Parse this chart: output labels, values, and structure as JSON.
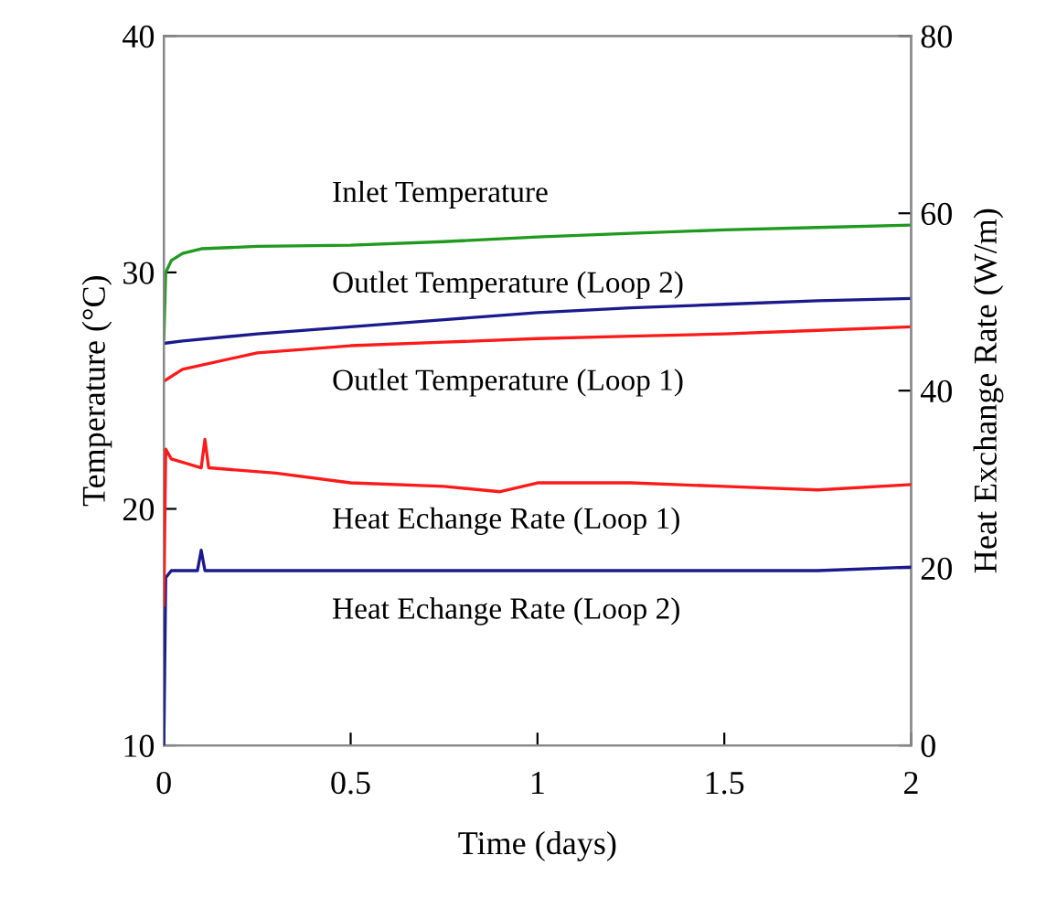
{
  "chart_data": {
    "type": "line",
    "xlabel": "Time (days)",
    "ylabel": "Temperature (°C)",
    "y2label": "Heat Exchange Rate (W/m)",
    "xlim": [
      0,
      2
    ],
    "xticks": [
      0,
      0.5,
      1,
      1.5,
      2
    ],
    "ylim": [
      10,
      40
    ],
    "yticks": [
      10,
      20,
      30,
      40
    ],
    "y2lim": [
      0,
      80
    ],
    "y2ticks": [
      0,
      20,
      40,
      60,
      80
    ],
    "grid": false,
    "legend": false,
    "series": [
      {
        "name": "Inlet Temperature",
        "color": "#1f9a1f",
        "x": [
          0,
          0.005,
          0.02,
          0.05,
          0.1,
          0.25,
          0.5,
          0.75,
          1,
          1.25,
          1.5,
          1.75,
          2
        ],
        "values": [
          27.2,
          30.0,
          30.5,
          30.8,
          31.0,
          31.1,
          31.15,
          31.3,
          31.5,
          31.65,
          31.8,
          31.9,
          32.0
        ]
      },
      {
        "name": "Outlet Temperature (Loop 2)",
        "color": "#1a1a8c",
        "x": [
          0,
          0.05,
          0.25,
          0.5,
          0.75,
          1,
          1.25,
          1.5,
          1.75,
          2
        ],
        "values": [
          27.0,
          27.1,
          27.4,
          27.7,
          28.0,
          28.3,
          28.5,
          28.65,
          28.8,
          28.9
        ]
      },
      {
        "name": "Outlet Temperature (Loop 1)",
        "color": "#ff1a1a",
        "x": [
          0,
          0.05,
          0.25,
          0.5,
          0.75,
          1,
          1.25,
          1.5,
          1.75,
          2
        ],
        "values": [
          25.4,
          25.9,
          26.6,
          26.9,
          27.05,
          27.2,
          27.3,
          27.4,
          27.55,
          27.7
        ]
      },
      {
        "name": "Heat Echange Rate (Loop 1)",
        "color": "#ff1a1a",
        "axis": "y2",
        "x": [
          0,
          0.005,
          0.02,
          0.1,
          0.11,
          0.12,
          0.3,
          0.5,
          0.75,
          0.9,
          1,
          1.25,
          1.5,
          1.75,
          2
        ],
        "values": [
          15.8,
          33.4,
          32.3,
          31.3,
          34.5,
          31.3,
          30.7,
          29.6,
          29.2,
          28.6,
          29.6,
          29.6,
          29.2,
          28.8,
          29.4
        ]
      },
      {
        "name": "Heat Echange Rate (Loop 2)",
        "color": "#1a1a8c",
        "axis": "y2",
        "x": [
          0,
          0.005,
          0.02,
          0.09,
          0.1,
          0.11,
          0.3,
          0.5,
          0.75,
          1,
          1.25,
          1.5,
          1.75,
          2
        ],
        "values": [
          0,
          18.9,
          19.7,
          19.7,
          22.0,
          19.7,
          19.7,
          19.7,
          19.7,
          19.7,
          19.7,
          19.7,
          19.7,
          20.1
        ]
      }
    ]
  }
}
